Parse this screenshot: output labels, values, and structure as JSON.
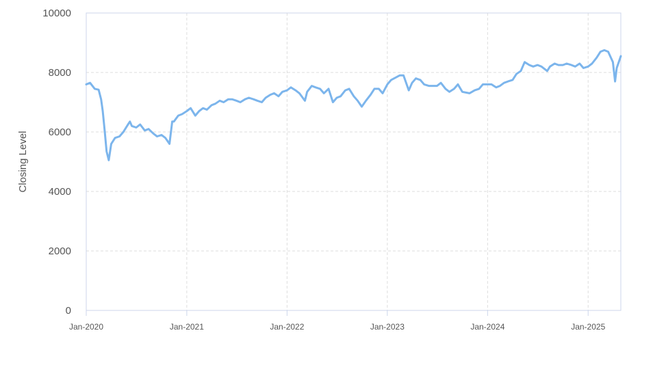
{
  "chart_data": {
    "type": "line",
    "title": "",
    "xlabel": "",
    "ylabel": "Closing Level",
    "ylim": [
      0,
      10000
    ],
    "xlim": [
      "2020-01-01",
      "2025-04-30"
    ],
    "yticks": [
      0,
      2000,
      4000,
      6000,
      8000,
      10000
    ],
    "xticks": [
      "2020-01-01",
      "2021-01-01",
      "2022-01-01",
      "2023-01-01",
      "2024-01-01",
      "2025-01-01"
    ],
    "xtick_labels": [
      "Jan-2020",
      "Jan-2021",
      "Jan-2022",
      "Jan-2023",
      "Jan-2024",
      "Jan-2025"
    ],
    "grid": true,
    "line_color": "#7cb5ec",
    "series": [
      {
        "x": [
          "2020-01-01",
          "2020-01-15",
          "2020-02-01",
          "2020-02-15",
          "2020-02-24",
          "2020-03-01",
          "2020-03-08",
          "2020-03-15",
          "2020-03-23",
          "2020-04-01",
          "2020-04-15",
          "2020-05-01",
          "2020-05-15",
          "2020-06-01",
          "2020-06-08",
          "2020-06-15",
          "2020-07-01",
          "2020-07-15",
          "2020-08-01",
          "2020-08-15",
          "2020-09-01",
          "2020-09-15",
          "2020-10-01",
          "2020-10-15",
          "2020-10-30",
          "2020-11-09",
          "2020-11-15",
          "2020-12-01",
          "2020-12-15",
          "2021-01-01",
          "2021-01-15",
          "2021-02-01",
          "2021-02-15",
          "2021-03-01",
          "2021-03-15",
          "2021-04-01",
          "2021-04-15",
          "2021-05-01",
          "2021-05-15",
          "2021-06-01",
          "2021-06-15",
          "2021-07-01",
          "2021-07-15",
          "2021-08-01",
          "2021-08-15",
          "2021-09-01",
          "2021-09-15",
          "2021-10-01",
          "2021-10-15",
          "2021-11-01",
          "2021-11-15",
          "2021-12-01",
          "2021-12-15",
          "2022-01-01",
          "2022-01-15",
          "2022-02-01",
          "2022-02-15",
          "2022-03-07",
          "2022-03-15",
          "2022-04-01",
          "2022-04-15",
          "2022-05-01",
          "2022-05-15",
          "2022-06-01",
          "2022-06-17",
          "2022-07-01",
          "2022-07-15",
          "2022-08-01",
          "2022-08-15",
          "2022-09-01",
          "2022-09-15",
          "2022-09-30",
          "2022-10-15",
          "2022-11-01",
          "2022-11-15",
          "2022-12-01",
          "2022-12-15",
          "2023-01-01",
          "2023-01-15",
          "2023-02-15",
          "2023-03-01",
          "2023-03-20",
          "2023-04-01",
          "2023-04-15",
          "2023-05-01",
          "2023-05-15",
          "2023-06-01",
          "2023-06-15",
          "2023-07-01",
          "2023-07-15",
          "2023-08-01",
          "2023-08-15",
          "2023-09-01",
          "2023-09-15",
          "2023-10-01",
          "2023-10-27",
          "2023-11-15",
          "2023-12-01",
          "2023-12-15",
          "2024-01-01",
          "2024-01-15",
          "2024-02-01",
          "2024-02-15",
          "2024-03-01",
          "2024-03-15",
          "2024-04-01",
          "2024-04-15",
          "2024-05-01",
          "2024-05-15",
          "2024-06-01",
          "2024-06-15",
          "2024-07-01",
          "2024-07-15",
          "2024-08-05",
          "2024-08-15",
          "2024-09-01",
          "2024-09-15",
          "2024-10-01",
          "2024-10-15",
          "2024-11-01",
          "2024-11-15",
          "2024-12-01",
          "2024-12-15",
          "2025-01-01",
          "2025-01-15",
          "2025-02-01",
          "2025-02-15",
          "2025-03-01",
          "2025-03-15",
          "2025-04-01",
          "2025-04-09",
          "2025-04-15",
          "2025-04-30"
        ],
        "values": [
          7600,
          7650,
          7450,
          7420,
          7100,
          6700,
          6050,
          5350,
          5050,
          5600,
          5800,
          5850,
          6000,
          6250,
          6350,
          6200,
          6150,
          6250,
          6050,
          6100,
          5950,
          5850,
          5900,
          5800,
          5600,
          6350,
          6350,
          6550,
          6600,
          6700,
          6800,
          6550,
          6700,
          6800,
          6750,
          6900,
          6950,
          7050,
          7000,
          7100,
          7100,
          7050,
          7000,
          7100,
          7150,
          7100,
          7050,
          7000,
          7150,
          7250,
          7300,
          7200,
          7350,
          7400,
          7500,
          7400,
          7300,
          7050,
          7350,
          7550,
          7500,
          7450,
          7300,
          7450,
          7000,
          7150,
          7200,
          7400,
          7450,
          7200,
          7050,
          6850,
          7050,
          7250,
          7450,
          7450,
          7300,
          7600,
          7750,
          7900,
          7900,
          7400,
          7650,
          7800,
          7750,
          7600,
          7550,
          7550,
          7550,
          7650,
          7450,
          7350,
          7450,
          7600,
          7350,
          7300,
          7400,
          7450,
          7600,
          7600,
          7600,
          7500,
          7550,
          7650,
          7700,
          7750,
          7950,
          8050,
          8350,
          8250,
          8200,
          8250,
          8200,
          8050,
          8200,
          8300,
          8250,
          8250,
          8300,
          8250,
          8200,
          8300,
          8150,
          8200,
          8300,
          8500,
          8700,
          8750,
          8700,
          8350,
          7700,
          8150,
          8550
        ]
      }
    ]
  }
}
